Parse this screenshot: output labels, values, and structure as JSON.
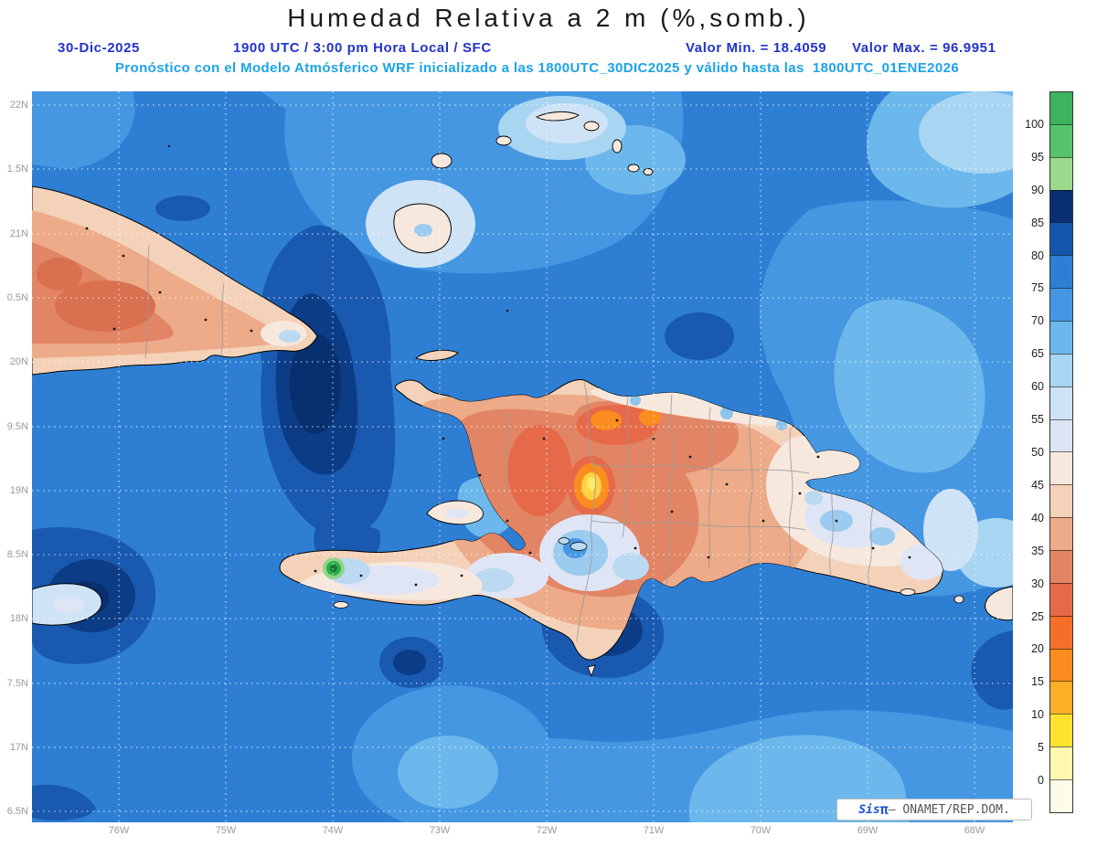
{
  "title": "Humedad Relativa a 2 m (%,somb.)",
  "header": {
    "date": "30-Dic-2025",
    "time_line": "1900 UTC / 3:00 pm Hora Local / SFC",
    "valor_min": "Valor Min. = 18.4059",
    "valor_max": "Valor Max. = 96.9951",
    "forecast_line": "Pronóstico con el Modelo Atmósferico WRF inicializado a las 1800UTC_30DIC2025 y válido hasta las  1800UTC_01ENE2026"
  },
  "axes": {
    "lat_labels": [
      "22N",
      "1.5N",
      "21N",
      "0.5N",
      "20N",
      "9.5N",
      "19N",
      "8.5N",
      "18N",
      "7.5N",
      "17N",
      "6.5N"
    ],
    "lon_labels": [
      "76W",
      "75W",
      "74W",
      "73W",
      "72W",
      "71W",
      "70W",
      "69W",
      "68W"
    ]
  },
  "colorbar": {
    "labels": [
      "100",
      "95",
      "90",
      "85",
      "80",
      "75",
      "70",
      "65",
      "60",
      "55",
      "50",
      "45",
      "40",
      "35",
      "30",
      "25",
      "20",
      "15",
      "10",
      "5",
      "0"
    ],
    "colors": [
      "#3cb35c",
      "#57c26b",
      "#9bd98c",
      "#0a2f70",
      "#1556ac",
      "#2e7fd4",
      "#4597e2",
      "#6cb8ec",
      "#a8d5f2",
      "#cfe3f6",
      "#dde4f4",
      "#f7e8de",
      "#f4d2ba",
      "#edab89",
      "#e28565",
      "#e66a4a",
      "#f4702a",
      "#fb8c1f",
      "#fcaf27",
      "#ffe22e",
      "#fff9b0",
      "#fdfce8"
    ]
  },
  "attribution": {
    "sis": "Sis",
    "pi": "π",
    "rest": "– ONAMET/REP.DOM."
  },
  "map_data": {
    "variable": "Humedad Relativa a 2 m",
    "units": "%",
    "shading": "somb.",
    "min_value": 18.4059,
    "max_value": 96.9951,
    "level_step": 5,
    "level_min": 0,
    "level_max": 100,
    "ocean_band_dominant": "75-80",
    "land_band_dominant": "30-45"
  }
}
